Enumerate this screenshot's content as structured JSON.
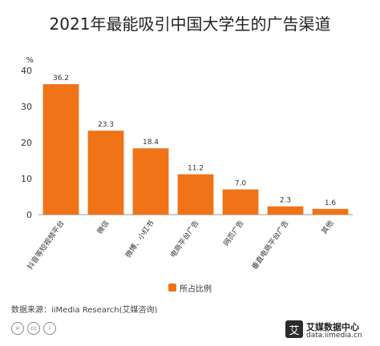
{
  "chart_data": {
    "type": "bar",
    "title": "2021年最能吸引中国大学生的广告渠道",
    "ylabel": "%",
    "xlabel": "",
    "ylim": [
      0,
      40
    ],
    "yticks": [
      0,
      10,
      20,
      30,
      40
    ],
    "categories": [
      "抖音等短视频平台",
      "微信",
      "微博、小红书",
      "电商平台广告",
      "网页广告",
      "垂直电商平台广告",
      "其他"
    ],
    "series": [
      {
        "name": "所占比例",
        "values": [
          36.2,
          23.3,
          18.4,
          11.2,
          7.0,
          2.3,
          1.6
        ]
      }
    ],
    "value_labels": [
      "36.2",
      "23.3",
      "18.4",
      "11.2",
      "7.0",
      "2.3",
      "1.6"
    ],
    "legend_position": "bottom",
    "grid": false,
    "bar_color": "#f07318"
  },
  "footer": {
    "source": "数据来源：iiMedia Research(艾媒咨询)",
    "cc_icons": [
      "=",
      "cc",
      "i"
    ],
    "brand_logo": "艾",
    "brand_name": "艾媒数据中心",
    "brand_url": "data.iimedia.cn"
  }
}
